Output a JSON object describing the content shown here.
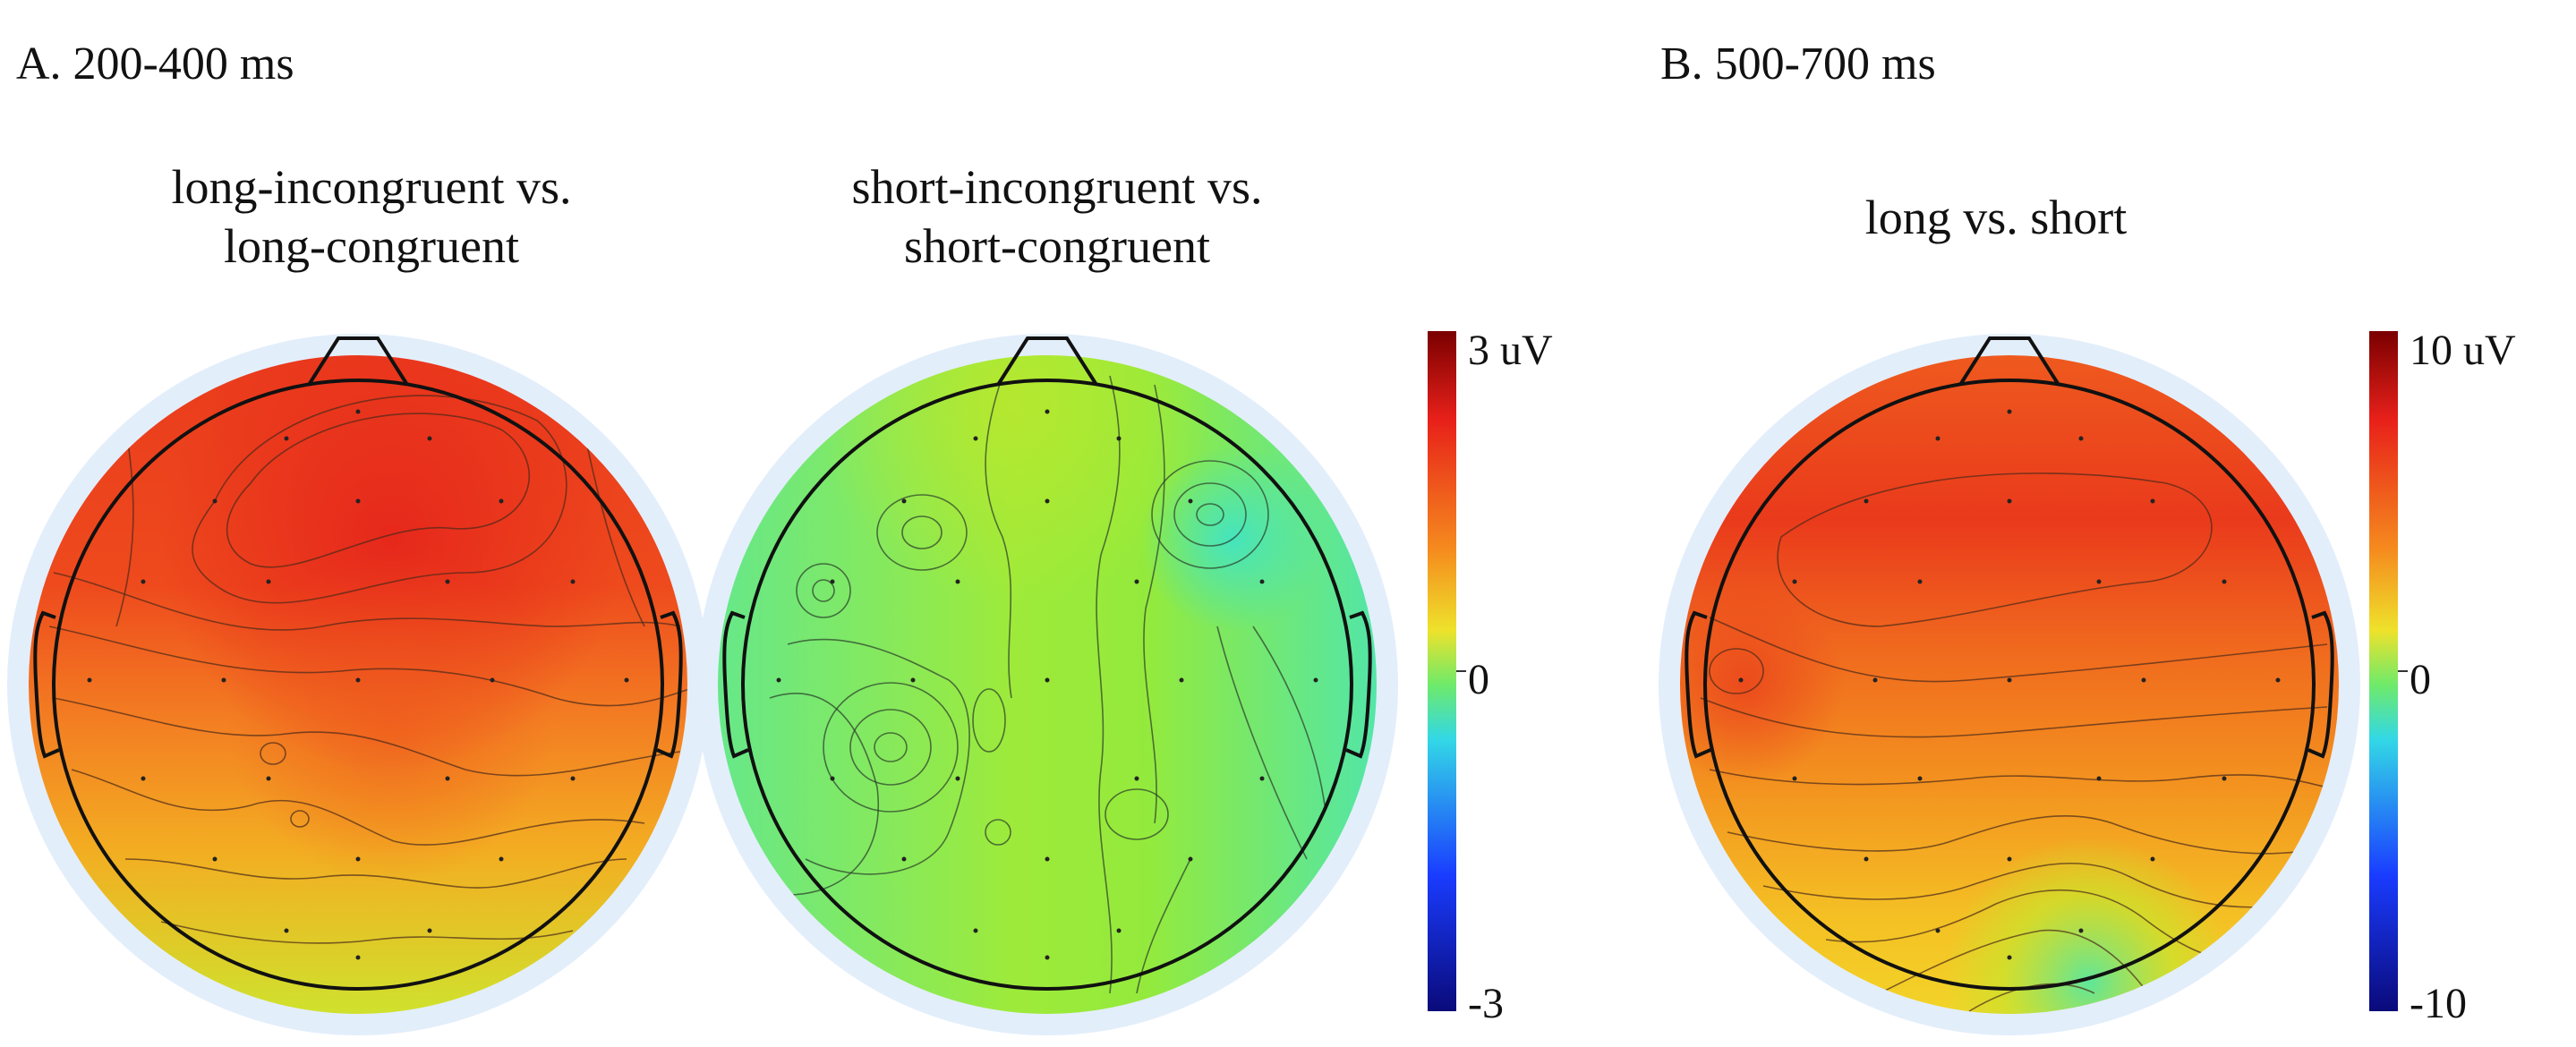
{
  "panels": {
    "A": {
      "label": "A. 200-400 ms",
      "maps": [
        {
          "title_line1": "long-incongruent vs.",
          "title_line2": "long-congruent"
        },
        {
          "title_line1": "short-incongruent vs.",
          "title_line2": "short-congruent"
        }
      ],
      "colorbar": {
        "max": "3 uV",
        "mid": "0",
        "min": "-3",
        "max_value": 3,
        "min_value": -3
      }
    },
    "B": {
      "label": "B. 500-700 ms",
      "maps": [
        {
          "title": "long vs. short"
        }
      ],
      "colorbar": {
        "max": "10 uV",
        "mid": "0",
        "min": "-10",
        "max_value": 10,
        "min_value": -10
      }
    }
  },
  "colors": {
    "red": "#e8321c",
    "orange": "#f47a1f",
    "yellow": "#e9e32a",
    "green": "#8fea3a",
    "teal": "#4fe6a0",
    "cyan": "#33d8e6",
    "blue": "#1a3cff",
    "navy": "#0a0a7a",
    "darkred": "#7a0000",
    "rim": "#e3eefb"
  }
}
